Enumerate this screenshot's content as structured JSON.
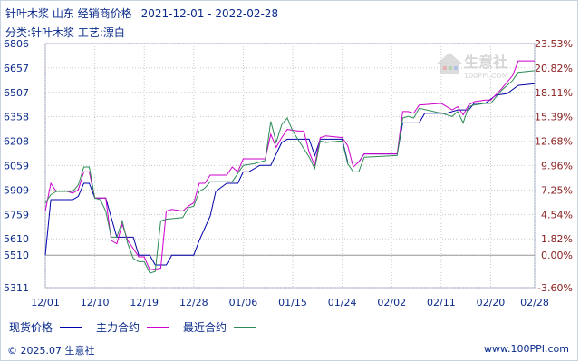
{
  "header": {
    "title": "针叶木浆 山东 经销商价格",
    "date_range": "2021-12-01 - 2022-02-28",
    "subtitle": "分类:针叶木浆 工艺:漂白"
  },
  "legend": {
    "label": "现货价格",
    "items": [
      {
        "name": "主力合约",
        "color": "#cc00cc"
      },
      {
        "name": "最近合约",
        "color": "#2e8b57"
      }
    ],
    "spot_color": "#0000aa"
  },
  "watermark": {
    "brand": "生意社",
    "url": "100PPI.COM"
  },
  "footer": {
    "copyright": "© 2025.07 生意社",
    "site": "www.100PPI.com"
  },
  "chart_data": {
    "type": "line",
    "y_ticks": [
      "6806",
      "6657",
      "6507",
      "6358",
      "6208",
      "6059",
      "5909",
      "5759",
      "5610",
      "5510",
      "5311"
    ],
    "y_right_ticks": [
      "23.53%",
      "20.82%",
      "18.11%",
      "15.39%",
      "12.68%",
      "9.96%",
      "7.25%",
      "4.54%",
      "1.82%",
      "0.00%",
      "-3.60%"
    ],
    "y_tick_values": [
      6806,
      6657,
      6507,
      6358,
      6208,
      6059,
      5909,
      5759,
      5610,
      5510,
      5311
    ],
    "ylim": [
      5311,
      6806
    ],
    "x_ticks": [
      "12/01",
      "12/10",
      "12/19",
      "12/28",
      "01/06",
      "01/15",
      "01/24",
      "02/02",
      "02/11",
      "02/20",
      "02/28"
    ],
    "x_tick_index": [
      0,
      9,
      18,
      27,
      36,
      45,
      54,
      63,
      72,
      81,
      89
    ],
    "x_count": 90,
    "series": [
      {
        "name": "现货价格",
        "color": "#0000aa",
        "points": [
          [
            0,
            5510
          ],
          [
            1,
            5850
          ],
          [
            5,
            5850
          ],
          [
            6,
            5870
          ],
          [
            7,
            5950
          ],
          [
            8,
            5950
          ],
          [
            9,
            5860
          ],
          [
            11,
            5860
          ],
          [
            13,
            5620
          ],
          [
            15,
            5620
          ],
          [
            16,
            5620
          ],
          [
            17,
            5510
          ],
          [
            19,
            5510
          ],
          [
            20,
            5450
          ],
          [
            22,
            5450
          ],
          [
            23,
            5510
          ],
          [
            27,
            5510
          ],
          [
            28,
            5600
          ],
          [
            30,
            5750
          ],
          [
            31,
            5900
          ],
          [
            33,
            5950
          ],
          [
            35,
            5950
          ],
          [
            36,
            6020
          ],
          [
            37,
            6020
          ],
          [
            39,
            6060
          ],
          [
            41,
            6060
          ],
          [
            42,
            6130
          ],
          [
            43,
            6200
          ],
          [
            44,
            6220
          ],
          [
            47,
            6220
          ],
          [
            48,
            6220
          ],
          [
            49,
            6120
          ],
          [
            50,
            6220
          ],
          [
            54,
            6220
          ],
          [
            55,
            6080
          ],
          [
            56,
            6080
          ],
          [
            57,
            6080
          ],
          [
            58,
            6130
          ],
          [
            64,
            6130
          ],
          [
            65,
            6320
          ],
          [
            68,
            6320
          ],
          [
            69,
            6380
          ],
          [
            73,
            6380
          ],
          [
            75,
            6400
          ],
          [
            77,
            6400
          ],
          [
            78,
            6440
          ],
          [
            80,
            6440
          ],
          [
            82,
            6490
          ],
          [
            84,
            6500
          ],
          [
            86,
            6550
          ],
          [
            89,
            6560
          ]
        ]
      },
      {
        "name": "主力合约",
        "color": "#cc00cc",
        "points": [
          [
            0,
            5780
          ],
          [
            1,
            5950
          ],
          [
            2,
            5900
          ],
          [
            4,
            5900
          ],
          [
            5,
            5890
          ],
          [
            6,
            5910
          ],
          [
            7,
            6020
          ],
          [
            8,
            6020
          ],
          [
            9,
            5860
          ],
          [
            11,
            5860
          ],
          [
            12,
            5600
          ],
          [
            13,
            5580
          ],
          [
            14,
            5700
          ],
          [
            15,
            5600
          ],
          [
            16,
            5550
          ],
          [
            17,
            5500
          ],
          [
            18,
            5500
          ],
          [
            19,
            5420
          ],
          [
            21,
            5430
          ],
          [
            22,
            5780
          ],
          [
            23,
            5790
          ],
          [
            25,
            5780
          ],
          [
            26,
            5810
          ],
          [
            27,
            5830
          ],
          [
            28,
            5950
          ],
          [
            29,
            5950
          ],
          [
            30,
            6000
          ],
          [
            33,
            6000
          ],
          [
            34,
            6050
          ],
          [
            35,
            6020
          ],
          [
            36,
            6100
          ],
          [
            38,
            6100
          ],
          [
            40,
            6100
          ],
          [
            41,
            6250
          ],
          [
            42,
            6170
          ],
          [
            43,
            6230
          ],
          [
            44,
            6280
          ],
          [
            46,
            6270
          ],
          [
            47,
            6270
          ],
          [
            48,
            6140
          ],
          [
            49,
            6060
          ],
          [
            50,
            6230
          ],
          [
            51,
            6240
          ],
          [
            54,
            6230
          ],
          [
            55,
            6180
          ],
          [
            56,
            6050
          ],
          [
            57,
            6080
          ],
          [
            58,
            6130
          ],
          [
            64,
            6130
          ],
          [
            65,
            6390
          ],
          [
            66,
            6390
          ],
          [
            67,
            6380
          ],
          [
            68,
            6430
          ],
          [
            72,
            6440
          ],
          [
            74,
            6400
          ],
          [
            75,
            6420
          ],
          [
            76,
            6370
          ],
          [
            77,
            6430
          ],
          [
            78,
            6450
          ],
          [
            80,
            6460
          ],
          [
            81,
            6460
          ],
          [
            83,
            6530
          ],
          [
            85,
            6610
          ],
          [
            86,
            6700
          ],
          [
            89,
            6700
          ]
        ]
      },
      {
        "name": "最近合约",
        "color": "#2e8b57",
        "points": [
          [
            0,
            5830
          ],
          [
            1,
            5880
          ],
          [
            2,
            5900
          ],
          [
            5,
            5900
          ],
          [
            6,
            5940
          ],
          [
            7,
            6050
          ],
          [
            8,
            6050
          ],
          [
            9,
            5860
          ],
          [
            10,
            5850
          ],
          [
            11,
            5780
          ],
          [
            12,
            5620
          ],
          [
            13,
            5620
          ],
          [
            14,
            5720
          ],
          [
            15,
            5580
          ],
          [
            16,
            5490
          ],
          [
            17,
            5470
          ],
          [
            18,
            5470
          ],
          [
            19,
            5400
          ],
          [
            20,
            5410
          ],
          [
            21,
            5720
          ],
          [
            22,
            5730
          ],
          [
            25,
            5740
          ],
          [
            26,
            5800
          ],
          [
            27,
            5810
          ],
          [
            28,
            5900
          ],
          [
            29,
            5920
          ],
          [
            30,
            5960
          ],
          [
            34,
            5960
          ],
          [
            35,
            6010
          ],
          [
            36,
            6060
          ],
          [
            38,
            6070
          ],
          [
            40,
            6090
          ],
          [
            41,
            6330
          ],
          [
            42,
            6200
          ],
          [
            43,
            6310
          ],
          [
            44,
            6350
          ],
          [
            45,
            6270
          ],
          [
            48,
            6110
          ],
          [
            49,
            6040
          ],
          [
            50,
            6210
          ],
          [
            51,
            6200
          ],
          [
            54,
            6210
          ],
          [
            55,
            6070
          ],
          [
            56,
            6020
          ],
          [
            57,
            6020
          ],
          [
            58,
            6110
          ],
          [
            64,
            6120
          ],
          [
            65,
            6350
          ],
          [
            66,
            6360
          ],
          [
            67,
            6350
          ],
          [
            68,
            6410
          ],
          [
            72,
            6380
          ],
          [
            74,
            6360
          ],
          [
            75,
            6390
          ],
          [
            76,
            6320
          ],
          [
            77,
            6420
          ],
          [
            78,
            6430
          ],
          [
            80,
            6440
          ],
          [
            81,
            6440
          ],
          [
            83,
            6520
          ],
          [
            85,
            6580
          ],
          [
            86,
            6630
          ],
          [
            89,
            6640
          ]
        ]
      }
    ]
  }
}
